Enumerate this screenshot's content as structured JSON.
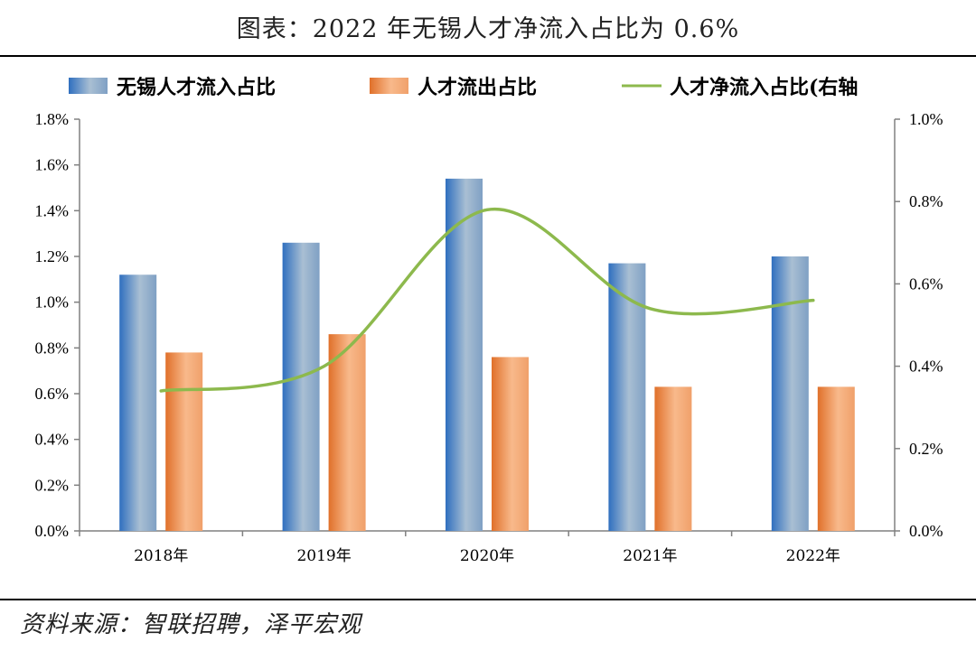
{
  "title": "图表：2022 年无锡人才净流入占比为 0.6%",
  "source": "资料来源：智联招聘，泽平宏观",
  "colors": {
    "blue_dark": "#2f6fbf",
    "blue_light": "#a9bfd3",
    "orange_dark": "#e0702a",
    "orange_light": "#f8b98b",
    "green": "#8db94d",
    "axis": "#808080"
  },
  "chart_data": {
    "type": "bar",
    "title": "",
    "categories": [
      "2018年",
      "2019年",
      "2020年",
      "2021年",
      "2022年"
    ],
    "series": [
      {
        "name": "无锡人才流入占比",
        "type": "bar",
        "axis": "left",
        "values": [
          1.12,
          1.26,
          1.54,
          1.17,
          1.2
        ]
      },
      {
        "name": "人才流出占比",
        "type": "bar",
        "axis": "left",
        "values": [
          0.78,
          0.86,
          0.76,
          0.63,
          0.63
        ]
      },
      {
        "name": "人才净流入占比(右轴",
        "type": "line",
        "axis": "right",
        "values": [
          0.34,
          0.4,
          0.78,
          0.54,
          0.56
        ]
      }
    ],
    "y_left": {
      "min": 0,
      "max": 1.8,
      "step": 0.2,
      "ticks": [
        "0.0%",
        "0.2%",
        "0.4%",
        "0.6%",
        "0.8%",
        "1.0%",
        "1.2%",
        "1.4%",
        "1.6%",
        "1.8%"
      ]
    },
    "y_right": {
      "min": 0,
      "max": 1.0,
      "step": 0.2,
      "ticks": [
        "0.0%",
        "0.2%",
        "0.4%",
        "0.6%",
        "0.8%",
        "1.0%"
      ]
    },
    "legend_position": "top",
    "grid": false
  }
}
